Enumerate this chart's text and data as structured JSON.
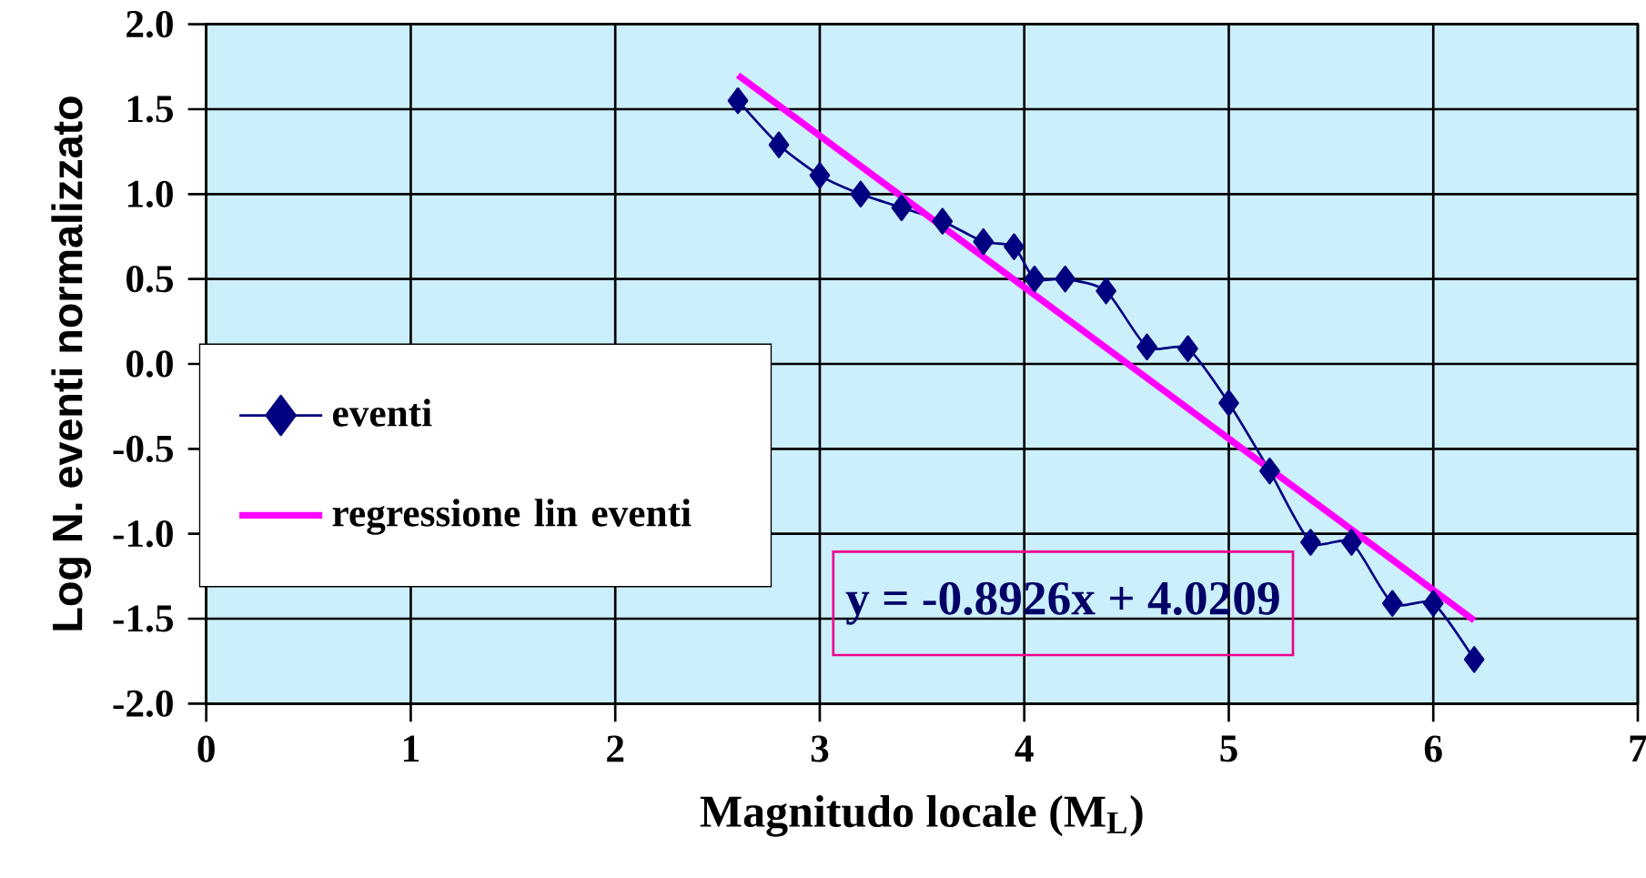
{
  "chart_data": {
    "type": "line",
    "xlabel": "Magnitudo locale (M$_{L}$)",
    "ylabel": "Log N. eventi normalizzato",
    "xlim": [
      0,
      7
    ],
    "xticks": [
      0,
      1,
      2,
      3,
      4,
      5,
      6,
      7
    ],
    "ylim": [
      -2,
      2
    ],
    "yticks": [
      {
        "value": -2,
        "label": "-2.0"
      },
      {
        "value": -1.5,
        "label": "-1.5"
      },
      {
        "value": -1,
        "label": "-1.0"
      },
      {
        "value": -0.5,
        "label": "-0.5"
      },
      {
        "value": 0,
        "label": "0.0"
      },
      {
        "value": 0.5,
        "label": "0.5"
      },
      {
        "value": 1,
        "label": "1.0"
      },
      {
        "value": 1.5,
        "label": "1.5"
      },
      {
        "value": 2,
        "label": "2.0"
      }
    ],
    "grid": true,
    "legend": "left",
    "annotations": [
      "y = -0.8926x + 4.0209"
    ],
    "series": [
      {
        "name": "eventi",
        "color": "#000080",
        "marker": "diamond",
        "x": [
          2.6,
          2.8,
          3.0,
          3.2,
          3.4,
          3.6,
          3.8,
          3.95,
          4.05,
          4.2,
          4.4,
          4.6,
          4.8,
          5.0,
          5.2,
          5.4,
          5.6,
          5.8,
          6.0,
          6.2
        ],
        "values": [
          1.55,
          1.29,
          1.11,
          1.0,
          0.92,
          0.84,
          0.72,
          0.69,
          0.5,
          0.5,
          0.43,
          0.1,
          0.09,
          -0.23,
          -0.63,
          -1.05,
          -1.05,
          -1.41,
          -1.41,
          -1.74
        ]
      },
      {
        "name": "regressione lin eventi",
        "color": "#ff00ff",
        "marker": "none",
        "x": [
          2.6,
          6.2
        ],
        "values": [
          1.7,
          -1.51
        ]
      }
    ]
  }
}
